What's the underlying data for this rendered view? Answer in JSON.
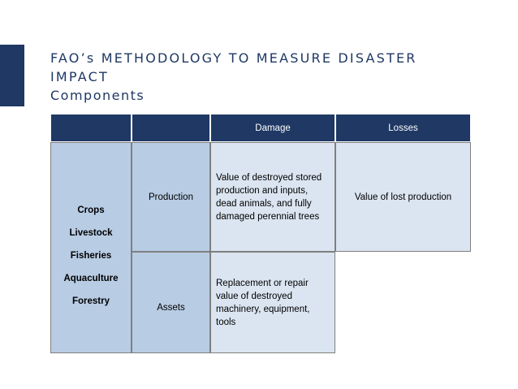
{
  "header": {
    "title": "FAO’s METHODOLOGY TO MEASURE DISASTER IMPACT",
    "subtitle": "Components"
  },
  "table": {
    "columns": [
      "Damage",
      "Losses"
    ],
    "sectors": [
      "Crops",
      "Livestock",
      "Fisheries",
      "Aquaculture",
      "Forestry"
    ],
    "rows": [
      {
        "label": "Production",
        "damage": "Value of destroyed stored production and inputs, dead animals, and fully damaged perennial trees",
        "losses": "Value of lost production"
      },
      {
        "label": "Assets",
        "damage": "Replacement or repair value of destroyed machinery, equipment, tools"
      }
    ]
  }
}
